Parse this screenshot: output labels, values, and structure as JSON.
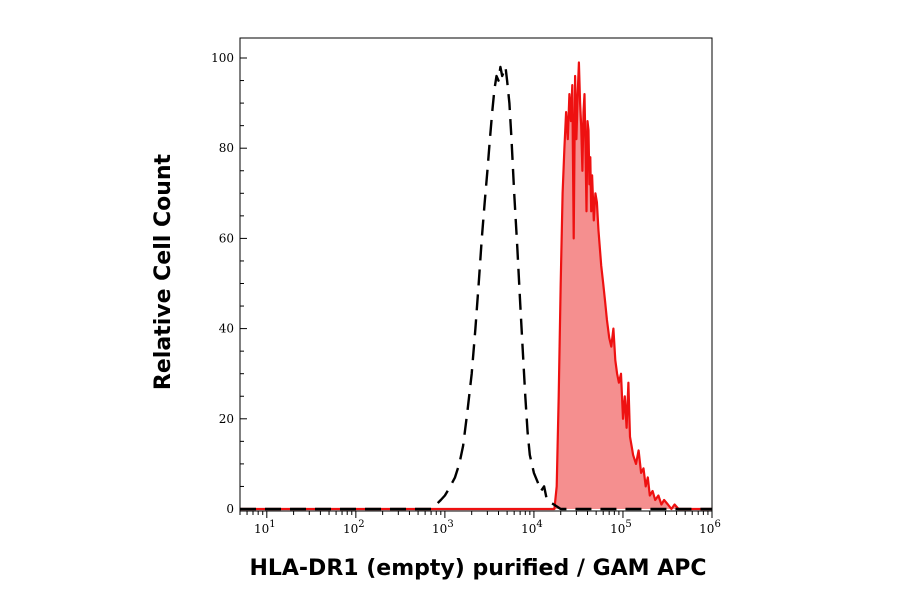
{
  "chart_data": {
    "type": "area",
    "title": "",
    "xlabel": "HLA-DR1 (empty) purified / GAM APC",
    "ylabel": "Relative Cell Count",
    "x_scale": "log",
    "xlim": [
      5,
      1000000
    ],
    "ylim": [
      0,
      100
    ],
    "x_ticks": [
      {
        "value": 10,
        "base": "10",
        "exp": "1"
      },
      {
        "value": 100,
        "base": "10",
        "exp": "2"
      },
      {
        "value": 1000,
        "base": "10",
        "exp": "3"
      },
      {
        "value": 10000,
        "base": "10",
        "exp": "4"
      },
      {
        "value": 100000,
        "base": "10",
        "exp": "5"
      },
      {
        "value": 1000000,
        "base": "10",
        "exp": "6"
      }
    ],
    "y_ticks": [
      {
        "value": 0,
        "label": "0"
      },
      {
        "value": 20,
        "label": "20"
      },
      {
        "value": 40,
        "label": "40"
      },
      {
        "value": 60,
        "label": "60"
      },
      {
        "value": 80,
        "label": "80"
      },
      {
        "value": 100,
        "label": "100"
      }
    ],
    "grid": false,
    "series": [
      {
        "style": "dashed",
        "color": "#000000",
        "fill": "none",
        "x": [
          5,
          700,
          800,
          900,
          1000,
          1150,
          1300,
          1450,
          1600,
          1800,
          2000,
          2200,
          2400,
          2600,
          2800,
          3000,
          3200,
          3400,
          3600,
          3800,
          4000,
          4200,
          4400,
          4600,
          4800,
          5000,
          5300,
          5600,
          6000,
          6500,
          7000,
          7500,
          8000,
          8500,
          9000,
          10000,
          11000,
          12000,
          13000,
          14000,
          20000,
          1000000
        ],
        "y": [
          0,
          0,
          1,
          2,
          3,
          5,
          7,
          10,
          14,
          22,
          30,
          40,
          50,
          60,
          68,
          75,
          82,
          88,
          93,
          96,
          95,
          98,
          96,
          97,
          98,
          95,
          90,
          82,
          70,
          58,
          46,
          35,
          25,
          17,
          12,
          8,
          6,
          4,
          5,
          2,
          0,
          0
        ]
      },
      {
        "style": "solid",
        "color": "#ee1111",
        "fill": "#f58f8f",
        "x": [
          5,
          17000,
          18000,
          19000,
          20000,
          21000,
          22000,
          23000,
          24000,
          25000,
          26000,
          27000,
          28000,
          29000,
          30000,
          31000,
          32000,
          33000,
          34000,
          35000,
          36000,
          37000,
          38000,
          39000,
          40000,
          41000,
          42000,
          43000,
          44000,
          45000,
          47000,
          49000,
          51000,
          53000,
          55000,
          57000,
          60000,
          63000,
          66000,
          70000,
          74000,
          78000,
          82000,
          86000,
          90000,
          95000,
          100000,
          105000,
          110000,
          115000,
          120000,
          125000,
          130000,
          140000,
          150000,
          160000,
          170000,
          180000,
          190000,
          200000,
          215000,
          230000,
          250000,
          270000,
          290000,
          320000,
          350000,
          380000,
          420000,
          460000,
          1000000
        ],
        "y": [
          0,
          0,
          5,
          25,
          50,
          70,
          80,
          88,
          82,
          92,
          86,
          94,
          60,
          96,
          82,
          92,
          99,
          90,
          85,
          75,
          88,
          92,
          80,
          66,
          86,
          84,
          72,
          78,
          66,
          74,
          64,
          70,
          68,
          62,
          58,
          54,
          50,
          46,
          42,
          38,
          36,
          40,
          33,
          30,
          28,
          30,
          20,
          25,
          18,
          28,
          16,
          14,
          12,
          10,
          13,
          8,
          9,
          5,
          7,
          3,
          4,
          2,
          3,
          1,
          2,
          1,
          0,
          1,
          0,
          0,
          0
        ]
      }
    ]
  }
}
